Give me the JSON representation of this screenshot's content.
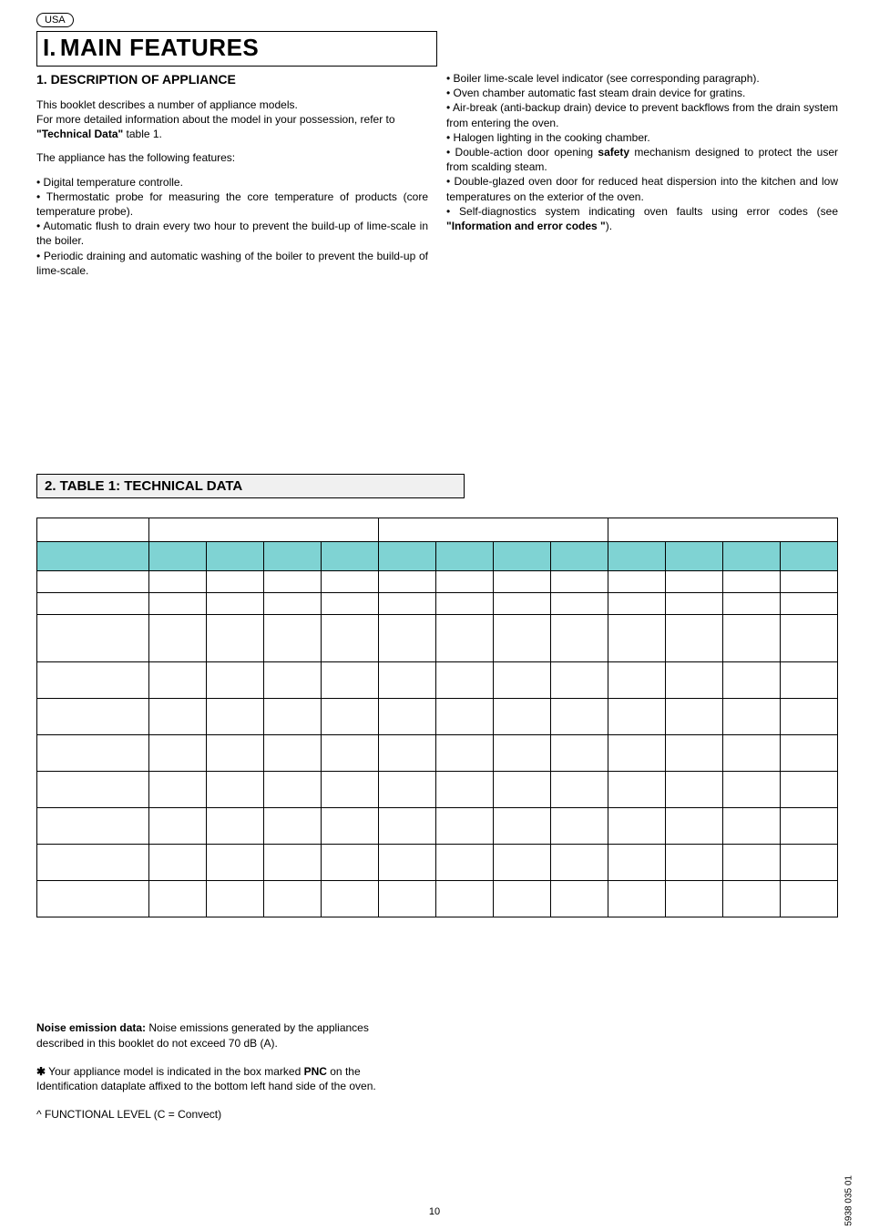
{
  "region": "USA",
  "main_title_num": "I.",
  "main_title_text": "MAIN FEATURES",
  "section1_heading": "1.   DESCRIPTION OF APPLIANCE",
  "col_left": {
    "p1": "This booklet describes a number of appliance models.",
    "p2": "For more detailed information about the model in your possession, refer to \"Technical Data\" table 1.",
    "p3": "The appliance has the following features:",
    "b1": "•  Digital temperature controlle.",
    "b2": "•  Thermostatic probe for measuring the core temperature of products (core temperature probe).",
    "b3": "•  Automatic flush to drain every two hour to prevent the build-up of lime-scale in the boiler.",
    "b4": "•  Periodic draining and automatic washing of the boiler to prevent the build-up of lime-scale."
  },
  "col_right": {
    "b1": "•  Boiler lime-scale level indicator (see corresponding paragraph).",
    "b2": "•  Oven chamber automatic fast steam drain device for gratins.",
    "b3": "•  Air-break (anti-backup drain) device to prevent backflows from the drain system from entering the oven.",
    "b4": "•  Halogen lighting in the cooking chamber.",
    "b5_pre": "• Double-action door opening ",
    "b5_strong": "safety",
    "b5_post": " mechanism designed to protect the user from scalding steam.",
    "b6": "• Double-glazed oven door for reduced heat dispersion into the kitchen and low temperatures on the exterior of the oven.",
    "b7_pre": "•  Self-diagnostics system indicating oven faults using error codes (see ",
    "b7_strong": "\"Information and error codes \"",
    "b7_post": ")."
  },
  "section2_heading": "2.  TABLE 1: TECHNICAL DATA",
  "notes": {
    "noise_label": "Noise emission data:",
    "noise_text": " Noise emissions generated by the appliances described in this booklet do not exceed 70 dB (A).",
    "star": "✱",
    "star_text_pre": " Your appliance model is indicated in the box marked ",
    "star_strong": "PNC",
    "star_text_post": " on the Identification dataplate affixed to the bottom left hand side of the oven.",
    "caret": "^  FUNCTIONAL LEVEL  (C = Convect)"
  },
  "page_number": "10",
  "side_code": "5938 035 01",
  "colors": {
    "header_bg": "#7fd3d3",
    "section_bg": "#f0f0f0",
    "text": "#000000",
    "page_bg": "#ffffff"
  },
  "table": {
    "group_cols": 4,
    "groups": 3,
    "data_rows": [
      {
        "h": "short"
      },
      {
        "h": "short"
      },
      {
        "h": "tall"
      },
      {
        "h": "med"
      },
      {
        "h": "med"
      },
      {
        "h": "med"
      },
      {
        "h": "med"
      },
      {
        "h": "med"
      },
      {
        "h": "med"
      },
      {
        "h": "med"
      }
    ]
  }
}
